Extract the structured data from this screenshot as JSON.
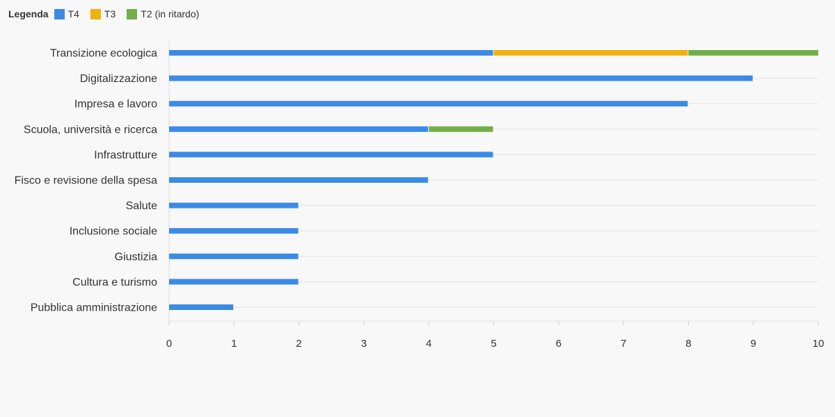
{
  "legend": {
    "title": "Legenda",
    "items": [
      {
        "label": "T4",
        "color": "#3b8be6"
      },
      {
        "label": "T3",
        "color": "#efb20f"
      },
      {
        "label": "T2 (in ritardo)",
        "color": "#72af48"
      }
    ]
  },
  "chart_data": {
    "type": "bar",
    "orientation": "horizontal",
    "stacked": true,
    "categories": [
      "Transizione ecologica",
      "Digitalizzazione",
      "Impresa e lavoro",
      "Scuola, università e ricerca",
      "Infrastrutture",
      "Fisco e revisione della spesa",
      "Salute",
      "Inclusione sociale",
      "Giustizia",
      "Cultura e turismo",
      "Pubblica amministrazione"
    ],
    "series": [
      {
        "name": "T4",
        "color": "#3b8be6",
        "values": [
          5,
          9,
          8,
          4,
          5,
          4,
          2,
          2,
          2,
          2,
          1
        ]
      },
      {
        "name": "T3",
        "color": "#efb20f",
        "values": [
          3,
          0,
          0,
          0,
          0,
          0,
          0,
          0,
          0,
          0,
          0
        ]
      },
      {
        "name": "T2 (in ritardo)",
        "color": "#72af48",
        "values": [
          2,
          0,
          0,
          1,
          0,
          0,
          0,
          0,
          0,
          0,
          0
        ]
      }
    ],
    "xlim": [
      0,
      10
    ],
    "xticks": [
      0,
      1,
      2,
      3,
      4,
      5,
      6,
      7,
      8,
      9,
      10
    ],
    "grid": true,
    "legend_position": "top-left"
  }
}
